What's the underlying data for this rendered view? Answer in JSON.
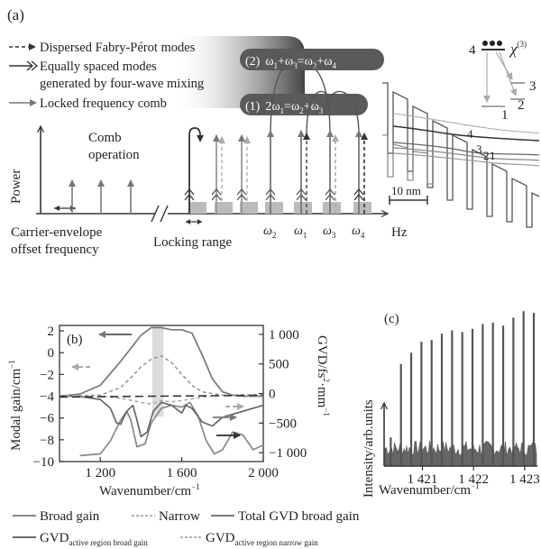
{
  "panel_a": {
    "label": "(a)",
    "legend": [
      {
        "text": "Dispersed Fabry-Pérot modes"
      },
      {
        "text": "Equally spaced modes"
      },
      {
        "text": "generated by four-wave mixing"
      },
      {
        "text": "Locked frequency comb"
      }
    ],
    "process2": {
      "num": "(2)",
      "w1": "ω",
      "s1": "1",
      "plus": "+ω",
      "s2": "3",
      "eq": "=ω",
      "s3": "2",
      "plus2": "+ω",
      "s4": "4"
    },
    "process1": {
      "num": "(1)",
      "lead": "2ω",
      "s1": "1",
      "eq": "=ω",
      "s2": "2",
      "plus": "+ω",
      "s3": "3"
    },
    "comb_operation_1": "Comb",
    "comb_operation_2": "operation",
    "power_label": "Power",
    "ceo_1": "Carrier-envelope",
    "ceo_2": "offset frequency",
    "locking_range": "Locking range",
    "hz": "Hz",
    "omegas": [
      {
        "w": "ω",
        "s": "2"
      },
      {
        "w": "ω",
        "s": "1"
      },
      {
        "w": "ω",
        "s": "3"
      },
      {
        "w": "ω",
        "s": "4"
      }
    ],
    "level_diagram": {
      "chi": "χ",
      "chi_sup": "(3)",
      "levels": [
        "4",
        "3",
        "2",
        "1"
      ]
    },
    "band_levels": [
      "4",
      "3",
      "2",
      "1"
    ],
    "scale_bar": "10 nm"
  },
  "panel_b": {
    "label": "(b)",
    "left_axis_label": "Modal gain/cm",
    "left_axis_sup": "−1",
    "right_axis_label_1": "GVD/fs",
    "right_axis_sup_1": "2",
    "right_axis_label_2": "·mm",
    "right_axis_sup_2": "−1",
    "x_axis_label": "Wavenumber/cm",
    "x_axis_sup": "−1",
    "left_ticks": [
      "2",
      "0",
      "−2",
      "−4",
      "−6",
      "−8",
      "−10"
    ],
    "right_ticks": [
      "1 000",
      "500",
      "0",
      "−500",
      "−1 000"
    ],
    "x_ticks": [
      "1 200",
      "1 600",
      "2 000"
    ]
  },
  "panel_c": {
    "label": "(c)",
    "y_axis_label": "Intensity/arb.units",
    "x_axis_label": "Wavenumber/cm",
    "x_axis_sup": "−1",
    "x_ticks": [
      "1 421",
      "1 422",
      "1 423"
    ]
  },
  "legend_b": {
    "broad_gain": "Broad  gain",
    "narrow": "Narrow",
    "total_gvd": "Total GVD broad gain",
    "gvd1_main": "GVD",
    "gvd1_sub": "active region broad gain",
    "gvd2_main": "GVD",
    "gvd2_sub": "active   region   narrow   gain"
  },
  "colors": {
    "dark": "#333333",
    "mid": "#777777",
    "light": "#aaaaaa",
    "shade": "#cccccc"
  },
  "chart_data": [
    {
      "type": "line",
      "xlabel": "Wavenumber/cm−1",
      "ylabel": "Modal gain/cm−1",
      "y2label": "GVD/fs2·mm−1",
      "xlim": [
        1000,
        2000
      ],
      "ylim": [
        -10,
        2.5
      ],
      "y2lim": [
        -1150,
        1150
      ],
      "x_ticks": [
        1200,
        1600,
        2000
      ],
      "y_ticks": [
        2,
        0,
        -2,
        -4,
        -6,
        -8,
        -10
      ],
      "y2_ticks": [
        1000,
        500,
        0,
        -500,
        -1000
      ],
      "series": [
        {
          "name": "Broad  gain",
          "axis": "left",
          "style": "solid",
          "color": "#777777",
          "x": [
            1000,
            1100,
            1200,
            1300,
            1400,
            1450,
            1500,
            1550,
            1600,
            1650,
            1700,
            1750,
            1800,
            1850,
            1900,
            1950,
            2000
          ],
          "y": [
            -4.0,
            -3.8,
            -3.0,
            -0.8,
            1.6,
            2.3,
            2.3,
            2.1,
            2.1,
            1.8,
            -0.2,
            -2.4,
            -3.6,
            -3.9,
            -4.0,
            -4.0,
            -4.0
          ]
        },
        {
          "name": "Narrow",
          "axis": "left",
          "style": "dashed",
          "color": "#999999",
          "x": [
            1000,
            1200,
            1300,
            1350,
            1400,
            1450,
            1500,
            1550,
            1600,
            1650,
            1700,
            1800,
            1900,
            2000
          ],
          "y": [
            -4.0,
            -3.9,
            -3.2,
            -2.3,
            -1.3,
            -0.6,
            -0.3,
            -0.9,
            -2.0,
            -3.0,
            -3.6,
            -3.9,
            -4.0,
            -4.0
          ]
        },
        {
          "name": "Total GVD broad gain",
          "axis": "right",
          "style": "solid",
          "color": "#888888",
          "x": [
            1100,
            1200,
            1250,
            1300,
            1330,
            1350,
            1380,
            1420,
            1450,
            1500,
            1550,
            1600,
            1640,
            1680,
            1720,
            1760,
            1800,
            1850,
            1900,
            1950,
            2000
          ],
          "y": [
            -1050,
            -1020,
            -800,
            -450,
            -300,
            -450,
            -900,
            -850,
            -500,
            -250,
            -200,
            -230,
            -150,
            -380,
            -800,
            -1020,
            -950,
            -650,
            -700,
            -950,
            -870
          ]
        },
        {
          "name": "GVDactive region broad gain",
          "axis": "right",
          "style": "solid",
          "color": "#666666",
          "x": [
            1000,
            1100,
            1200,
            1250,
            1280,
            1300,
            1330,
            1360,
            1380,
            1400,
            1430,
            1460,
            1500,
            1550,
            1600,
            1620,
            1650,
            1700,
            1750,
            1800,
            1900,
            2000
          ],
          "y": [
            -40,
            -50,
            -100,
            -250,
            -500,
            -520,
            -300,
            -200,
            -450,
            -730,
            -650,
            -300,
            -150,
            -200,
            -330,
            -200,
            -250,
            -480,
            -550,
            -400,
            -300,
            -200
          ]
        },
        {
          "name": "GVDactive region narrow gain",
          "axis": "right",
          "style": "dashed",
          "color": "#aaaaaa",
          "x": [
            1000,
            1200,
            1300,
            1400,
            1450,
            1500,
            1550,
            1600,
            1700,
            1800,
            1900,
            2000
          ],
          "y": [
            -30,
            -40,
            -80,
            -150,
            -180,
            -120,
            -140,
            -120,
            -60,
            -30,
            -20,
            -20
          ]
        },
        {
          "name": "",
          "axis": "right",
          "style": "dashed",
          "color": "#333333",
          "x": [
            1000,
            2000
          ],
          "y": [
            -60,
            -30
          ]
        }
      ]
    },
    {
      "type": "bar",
      "xlabel": "Wavenumber/cm−1",
      "ylabel": "Intensity/arb.units",
      "x_ticks": [
        1421,
        1422,
        1423
      ],
      "xlim": [
        1420.25,
        1423.25
      ],
      "ylim": [
        0,
        1
      ],
      "x": [
        1420.38,
        1420.58,
        1420.78,
        1420.98,
        1421.18,
        1421.38,
        1421.58,
        1421.78,
        1421.98,
        1422.18,
        1422.38,
        1422.58,
        1422.78,
        1422.98,
        1423.18
      ],
      "values": [
        0.18,
        0.64,
        0.71,
        0.78,
        0.79,
        0.83,
        0.85,
        0.84,
        0.86,
        0.89,
        0.9,
        0.88,
        0.93,
        0.97,
        0.96
      ]
    }
  ]
}
